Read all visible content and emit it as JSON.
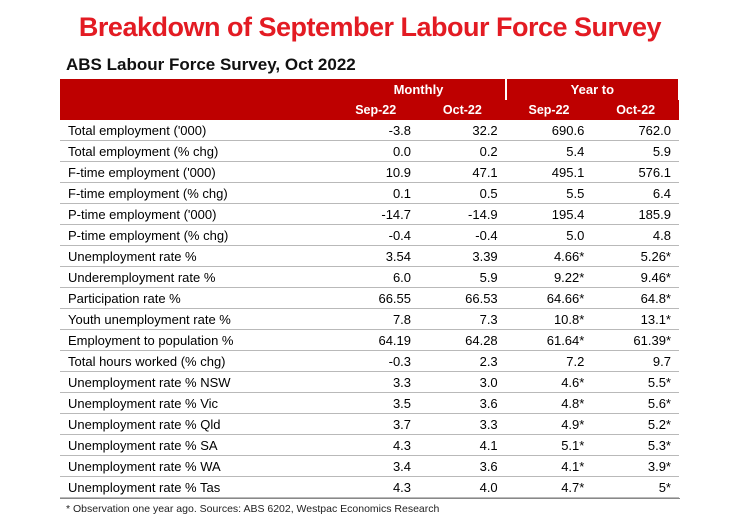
{
  "title": "Breakdown of September Labour Force Survey",
  "table": {
    "heading": "ABS Labour Force Survey, Oct 2022",
    "group_headers": {
      "monthly": "Monthly",
      "year_to": "Year to"
    },
    "col_headers": {
      "m1": "Sep-22",
      "m2": "Oct-22",
      "y1": "Sep-22",
      "y2": "Oct-22"
    },
    "rows": [
      {
        "label": "Total employment ('000)",
        "m1": "-3.8",
        "m2": "32.2",
        "y1": "690.6",
        "y2": "762.0"
      },
      {
        "label": "Total employment (% chg)",
        "m1": "0.0",
        "m2": "0.2",
        "y1": "5.4",
        "y2": "5.9"
      },
      {
        "label": "F-time employment ('000)",
        "m1": "10.9",
        "m2": "47.1",
        "y1": "495.1",
        "y2": "576.1"
      },
      {
        "label": "F-time employment (% chg)",
        "m1": "0.1",
        "m2": "0.5",
        "y1": "5.5",
        "y2": "6.4"
      },
      {
        "label": "P-time employment ('000)",
        "m1": "-14.7",
        "m2": "-14.9",
        "y1": "195.4",
        "y2": "185.9"
      },
      {
        "label": "P-time employment (% chg)",
        "m1": "-0.4",
        "m2": "-0.4",
        "y1": "5.0",
        "y2": "4.8"
      },
      {
        "label": "Unemployment rate %",
        "m1": "3.54",
        "m2": "3.39",
        "y1": "4.66*",
        "y2": "5.26*"
      },
      {
        "label": "Underemployment rate %",
        "m1": "6.0",
        "m2": "5.9",
        "y1": "9.22*",
        "y2": "9.46*"
      },
      {
        "label": "Participation rate %",
        "m1": "66.55",
        "m2": "66.53",
        "y1": "64.66*",
        "y2": "64.8*"
      },
      {
        "label": "Youth unemployment rate %",
        "m1": "7.8",
        "m2": "7.3",
        "y1": "10.8*",
        "y2": "13.1*"
      },
      {
        "label": "Employment to population %",
        "m1": "64.19",
        "m2": "64.28",
        "y1": "61.64*",
        "y2": "61.39*"
      },
      {
        "label": "Total hours worked (% chg)",
        "m1": "-0.3",
        "m2": "2.3",
        "y1": "7.2",
        "y2": "9.7"
      },
      {
        "label": "Unemployment rate % NSW",
        "m1": "3.3",
        "m2": "3.0",
        "y1": "4.6*",
        "y2": "5.5*"
      },
      {
        "label": "Unemployment rate % Vic",
        "m1": "3.5",
        "m2": "3.6",
        "y1": "4.8*",
        "y2": "5.6*"
      },
      {
        "label": "Unemployment rate % Qld",
        "m1": "3.7",
        "m2": "3.3",
        "y1": "4.9*",
        "y2": "5.2*"
      },
      {
        "label": "Unemployment rate % SA",
        "m1": "4.3",
        "m2": "4.1",
        "y1": "5.1*",
        "y2": "5.3*"
      },
      {
        "label": "Unemployment rate % WA",
        "m1": "3.4",
        "m2": "3.6",
        "y1": "4.1*",
        "y2": "3.9*"
      },
      {
        "label": "Unemployment rate % Tas",
        "m1": "4.3",
        "m2": "4.0",
        "y1": "4.7*",
        "y2": "5*"
      }
    ],
    "footnote": "* Observation one year ago.  Sources: ABS 6202, Westpac Economics Research",
    "colors": {
      "title": "#e31b23",
      "header_bg": "#be0000",
      "header_text": "#ffffff",
      "row_border": "#b9b9b9",
      "text": "#111111"
    },
    "font_sizes": {
      "page_title": 27,
      "table_title": 17,
      "header": 13,
      "body": 13,
      "footnote": 10.5
    }
  }
}
